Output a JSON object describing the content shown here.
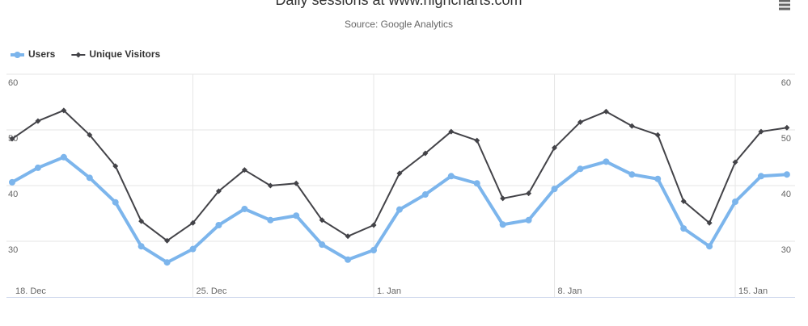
{
  "chart_data": {
    "type": "line",
    "title": "Daily sessions at www.highcharts.com",
    "subtitle": "Source: Google Analytics",
    "categories": [
      "18. Dec",
      null,
      null,
      null,
      null,
      null,
      null,
      "25. Dec",
      null,
      null,
      null,
      null,
      null,
      null,
      "1. Jan",
      null,
      null,
      null,
      null,
      null,
      null,
      "8. Jan",
      null,
      null,
      null,
      null,
      null,
      null,
      "15. Jan",
      null,
      null
    ],
    "series": [
      {
        "name": "Users",
        "color": "#7cb5ec",
        "marker": "circle",
        "values": [
          40.6,
          43.2,
          45.1,
          41.4,
          37.0,
          29.1,
          26.2,
          28.6,
          32.9,
          35.8,
          33.8,
          34.6,
          29.4,
          26.7,
          28.4,
          35.7,
          38.4,
          41.7,
          40.4,
          33.0,
          33.8,
          39.4,
          43.0,
          44.3,
          42.0,
          41.2,
          32.3,
          29.1,
          37.1,
          41.7,
          42.0
        ]
      },
      {
        "name": "Unique Visitors",
        "color": "#434348",
        "marker": "diamond",
        "values": [
          48.4,
          51.6,
          53.5,
          49.1,
          43.5,
          33.6,
          30.1,
          33.3,
          39.0,
          42.8,
          40.0,
          40.4,
          33.8,
          30.9,
          32.9,
          42.2,
          45.8,
          49.7,
          48.1,
          37.7,
          38.6,
          46.8,
          51.4,
          53.3,
          50.7,
          49.1,
          37.2,
          33.3,
          44.2,
          49.7,
          50.4
        ]
      }
    ],
    "ylim": [
      20,
      60
    ],
    "yticks": [
      30,
      40,
      50,
      60
    ],
    "y2lim": [
      20,
      60
    ],
    "y2ticks": [
      30,
      40,
      50,
      60
    ],
    "grid": true,
    "legend": "top-left"
  }
}
